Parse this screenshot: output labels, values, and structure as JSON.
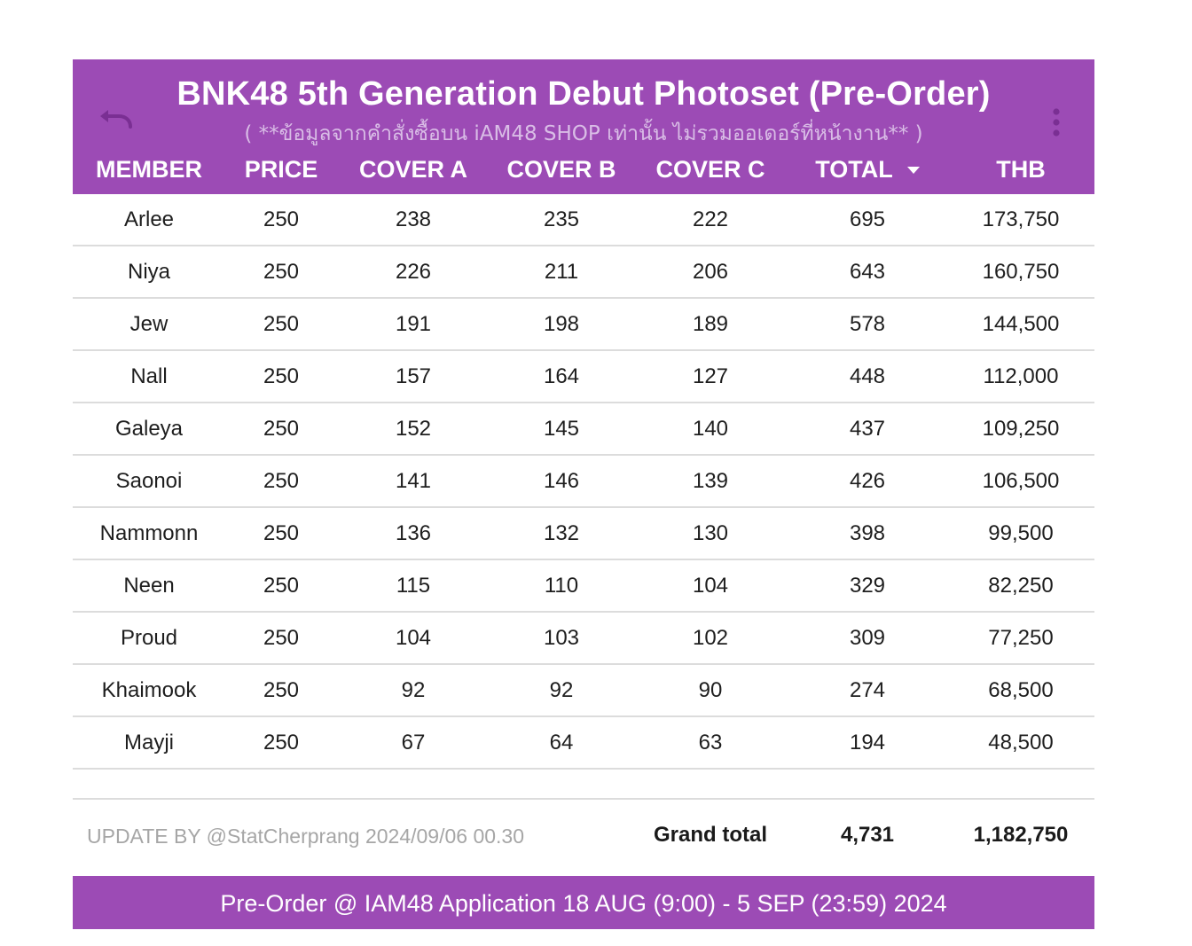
{
  "header": {
    "title": "BNK48 5th Generation Debut Photoset (Pre-Order)",
    "subtitle": "( **ข้อมูลจากคำสั่งซื้อบน iAM48 SHOP เท่านั้น ไม่รวมออเดอร์ที่หน้างาน** )",
    "undo_icon": "undo-icon",
    "more_icon": "more-vert-icon",
    "accent_color": "#9c4bb5"
  },
  "columns": [
    "MEMBER",
    "PRICE",
    "COVER A",
    "COVER B",
    "COVER C",
    "TOTAL",
    "THB"
  ],
  "sorted_column": "TOTAL",
  "sort_direction": "descending",
  "rows": [
    [
      "Arlee",
      "250",
      "238",
      "235",
      "222",
      "695",
      "173,750"
    ],
    [
      "Niya",
      "250",
      "226",
      "211",
      "206",
      "643",
      "160,750"
    ],
    [
      "Jew",
      "250",
      "191",
      "198",
      "189",
      "578",
      "144,500"
    ],
    [
      "Nall",
      "250",
      "157",
      "164",
      "127",
      "448",
      "112,000"
    ],
    [
      "Galeya",
      "250",
      "152",
      "145",
      "140",
      "437",
      "109,250"
    ],
    [
      "Saonoi",
      "250",
      "141",
      "146",
      "139",
      "426",
      "106,500"
    ],
    [
      "Nammonn",
      "250",
      "136",
      "132",
      "130",
      "398",
      "99,500"
    ],
    [
      "Neen",
      "250",
      "115",
      "110",
      "104",
      "329",
      "82,250"
    ],
    [
      "Proud",
      "250",
      "104",
      "103",
      "102",
      "309",
      "77,250"
    ],
    [
      "Khaimook",
      "250",
      "92",
      "92",
      "90",
      "274",
      "68,500"
    ],
    [
      "Mayji",
      "250",
      "67",
      "64",
      "63",
      "194",
      "48,500"
    ]
  ],
  "summary": {
    "update_text": "UPDATE BY @StatCherprang 2024/09/06 00.30",
    "grand_total_label": "Grand total",
    "grand_total_count": "4,731",
    "grand_total_thb": "1,182,750"
  },
  "footer": {
    "text": "Pre-Order @ IAM48 Application 18 AUG (9:00) - 5 SEP (23:59) 2024"
  }
}
